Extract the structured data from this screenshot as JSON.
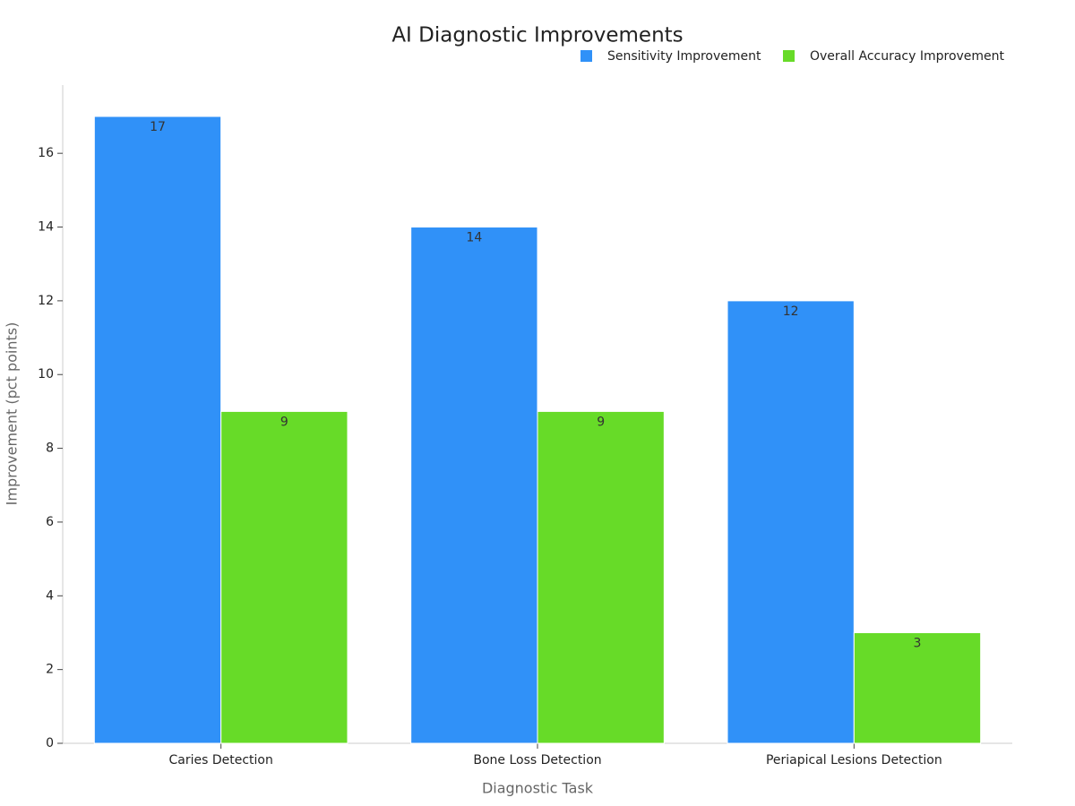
{
  "chart_data": {
    "type": "bar",
    "title": "AI Diagnostic Improvements",
    "x_label": "Diagnostic Task",
    "y_label": "Improvement (pct points)",
    "categories": [
      "Caries Detection",
      "Bone Loss Detection",
      "Periapical Lesions Detection"
    ],
    "series": [
      {
        "name": "Sensitivity Improvement",
        "color": "#3091f8",
        "values": [
          17,
          14,
          12
        ]
      },
      {
        "name": "Overall Accuracy Improvement",
        "color": "#67db28",
        "values": [
          9,
          9,
          3
        ]
      }
    ],
    "ylim": [
      0,
      17.85
    ],
    "yticks": [
      0,
      2,
      4,
      6,
      8,
      10,
      12,
      14,
      16
    ],
    "grid": false,
    "legend": "upper right"
  }
}
